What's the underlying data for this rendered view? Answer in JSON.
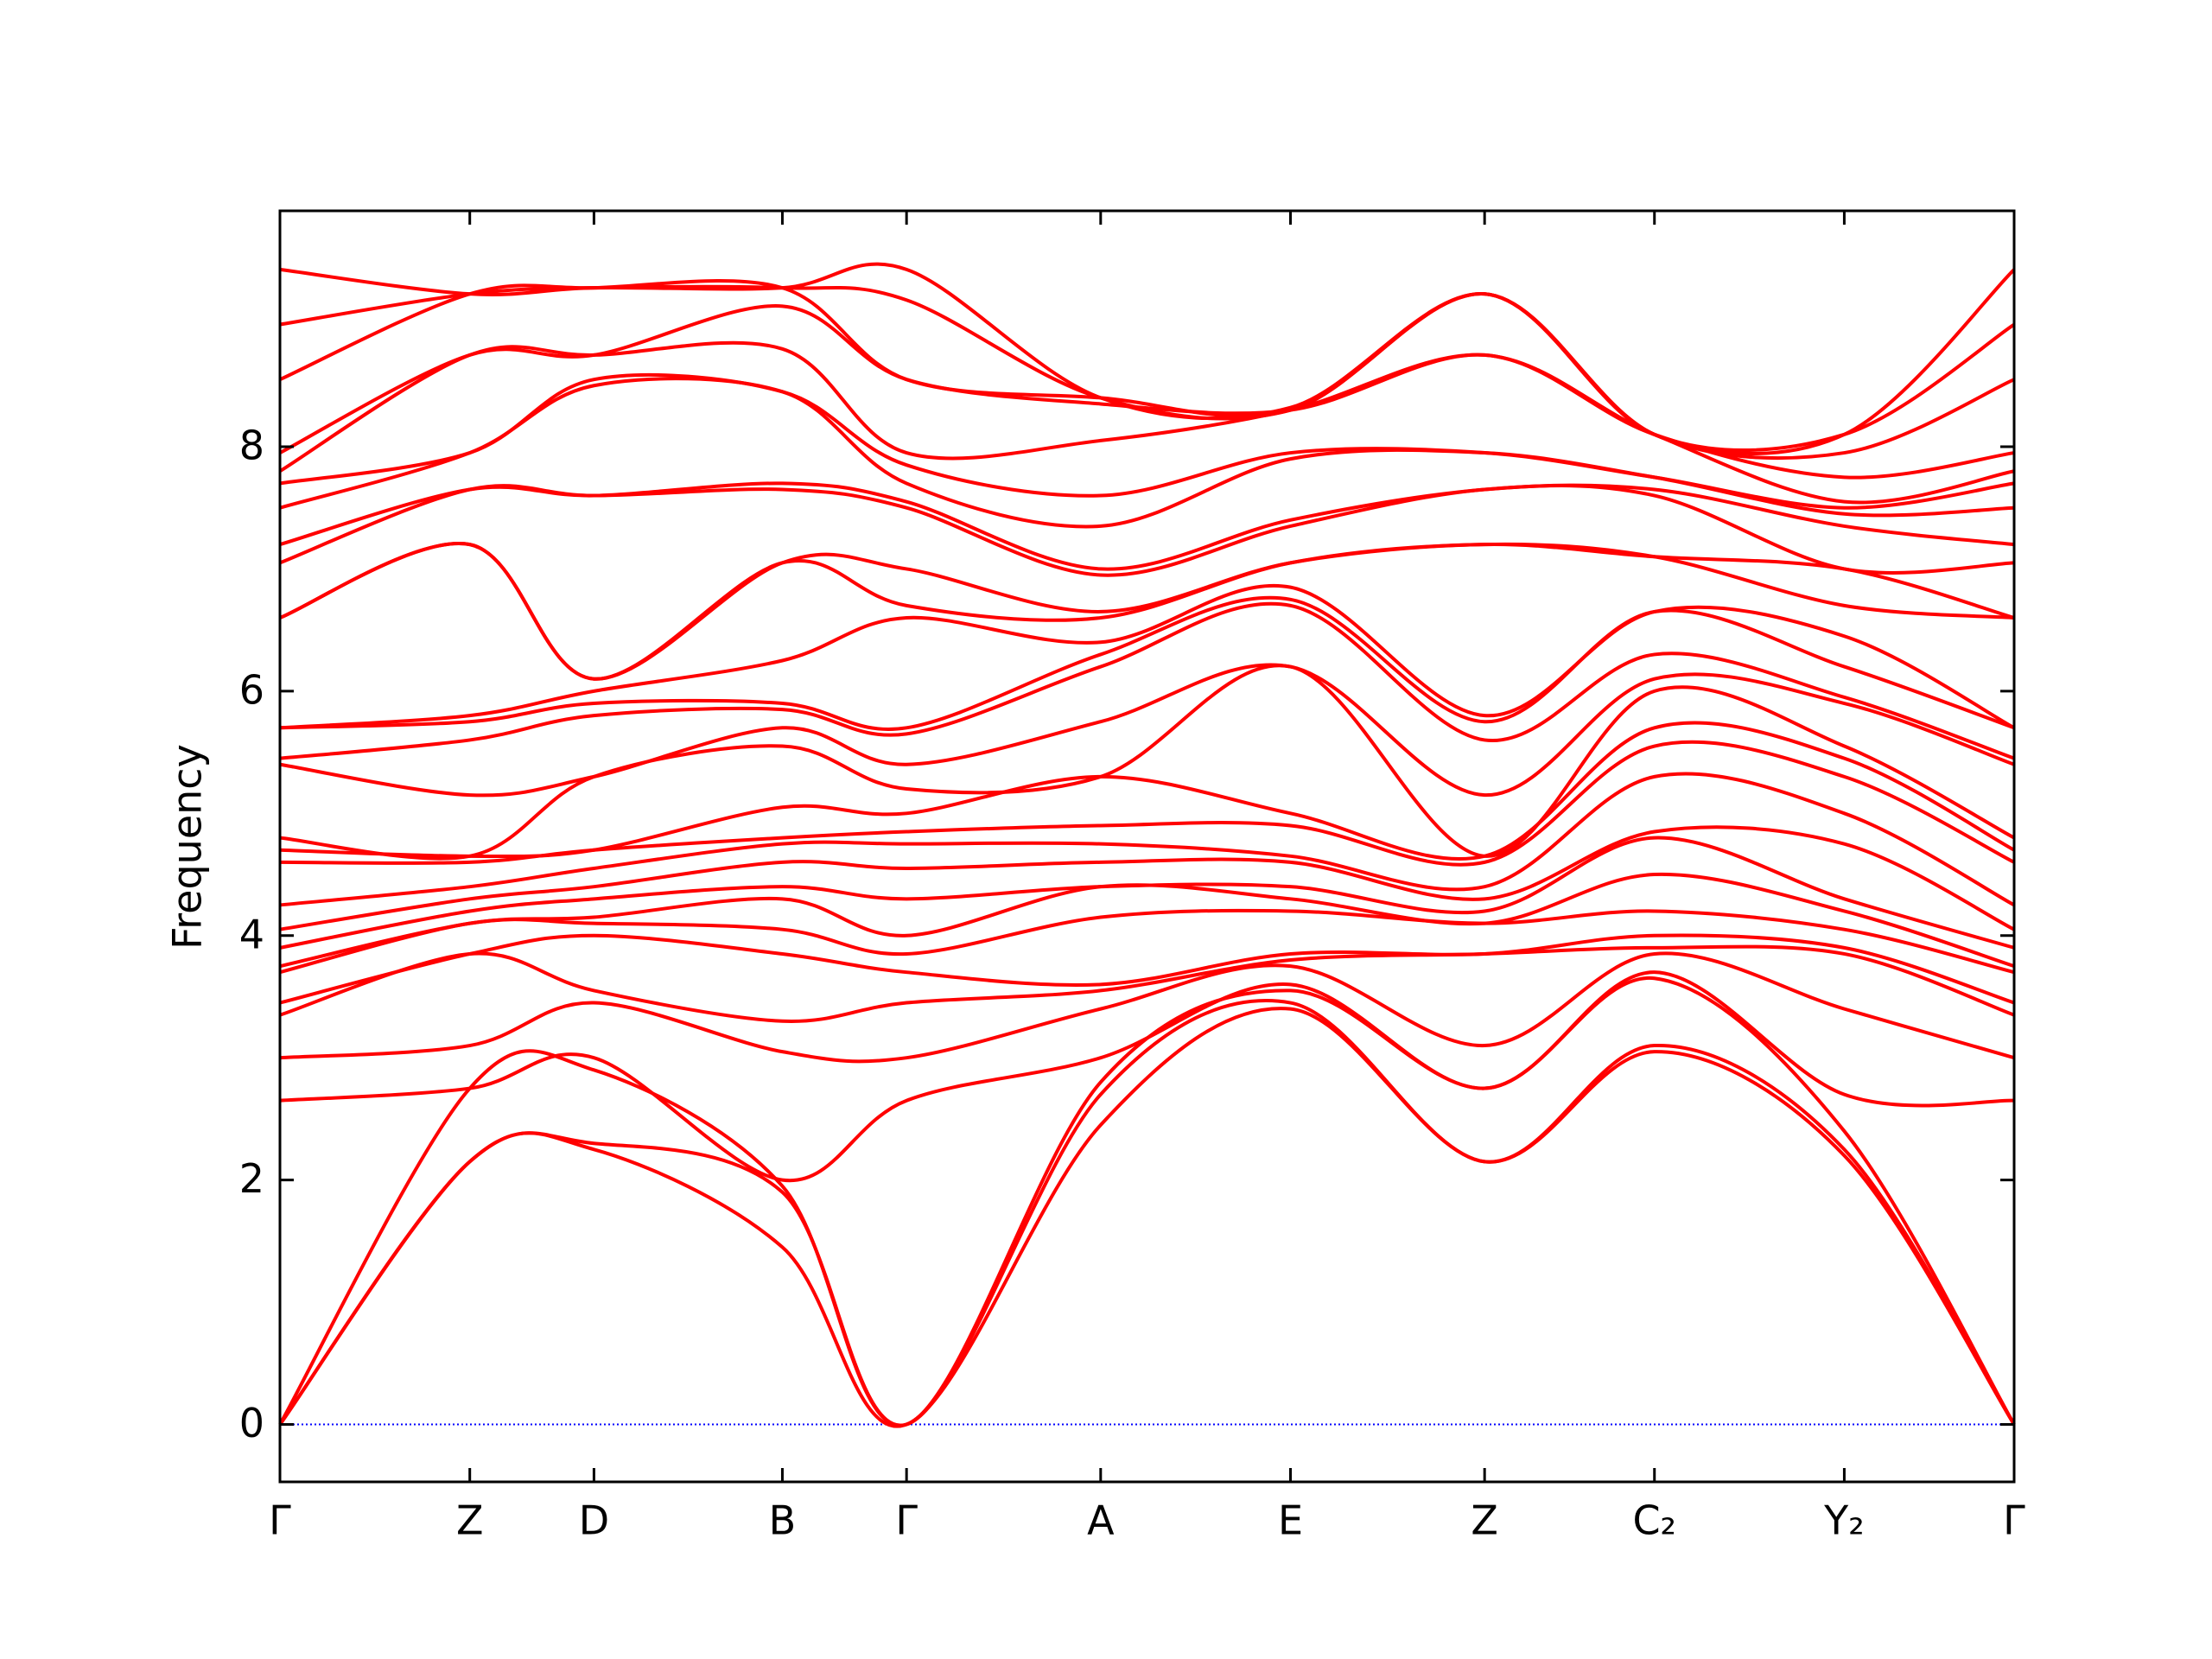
{
  "chart_data": {
    "type": "line",
    "ylabel": "Frequency",
    "color": "#ff0000",
    "reference_line": {
      "value": 0,
      "color": "#0000ff"
    },
    "x": [
      0,
      133,
      220,
      352,
      439,
      575,
      708,
      844,
      963,
      1096,
      1215
    ],
    "xlim": [
      0,
      1215
    ],
    "xticks": [
      {
        "value": 0,
        "label": "Γ"
      },
      {
        "value": 133,
        "label": "Z"
      },
      {
        "value": 220,
        "label": "D"
      },
      {
        "value": 352,
        "label": "B"
      },
      {
        "value": 439,
        "label": "Γ"
      },
      {
        "value": 575,
        "label": "A"
      },
      {
        "value": 708,
        "label": "E"
      },
      {
        "value": 844,
        "label": "Z"
      },
      {
        "value": 963,
        "label": "C₂"
      },
      {
        "value": 1096,
        "label": "Y₂"
      },
      {
        "value": 1215,
        "label": "Γ"
      }
    ],
    "ylim": [
      -0.47,
      9.93
    ],
    "yticks": [
      0,
      2,
      4,
      6,
      8
    ],
    "series": [
      {
        "values": [
          0,
          2.15,
          2.25,
          1.45,
          0,
          2.45,
          3.4,
          2.15,
          3.05,
          2.2,
          0
        ]
      },
      {
        "values": [
          0,
          2.15,
          2.3,
          1.9,
          0,
          2.7,
          3.45,
          2.15,
          3.1,
          2.25,
          0
        ]
      },
      {
        "values": [
          0,
          2.75,
          2.9,
          1.95,
          0,
          2.8,
          3.55,
          2.75,
          3.65,
          2.4,
          0
        ]
      },
      {
        "values": [
          2.65,
          2.75,
          3.0,
          2.0,
          2.65,
          3.0,
          3.6,
          2.75,
          3.7,
          2.7,
          2.65
        ]
      },
      {
        "values": [
          3.0,
          3.1,
          3.45,
          3.05,
          3.0,
          3.4,
          3.75,
          3.1,
          3.85,
          3.4,
          3.0
        ]
      },
      {
        "values": [
          3.35,
          3.85,
          3.55,
          3.3,
          3.45,
          3.55,
          3.8,
          3.85,
          3.9,
          3.85,
          3.35
        ]
      },
      {
        "values": [
          3.45,
          3.85,
          4.0,
          3.85,
          3.7,
          3.6,
          3.85,
          3.85,
          4.0,
          3.9,
          3.45
        ]
      },
      {
        "values": [
          3.7,
          4.1,
          4.1,
          4.05,
          3.85,
          4.15,
          4.2,
          4.1,
          4.2,
          4.05,
          3.7
        ]
      },
      {
        "values": [
          3.75,
          4.1,
          4.15,
          4.3,
          4.0,
          4.4,
          4.3,
          4.1,
          4.5,
          4.2,
          3.75
        ]
      },
      {
        "values": [
          3.9,
          4.2,
          4.3,
          4.4,
          4.3,
          4.4,
          4.4,
          4.2,
          4.8,
          4.3,
          3.9
        ]
      },
      {
        "values": [
          4.05,
          4.3,
          4.4,
          4.6,
          4.55,
          4.6,
          4.6,
          4.3,
          4.85,
          4.75,
          4.05
        ]
      },
      {
        "values": [
          4.25,
          4.4,
          4.55,
          4.75,
          4.75,
          4.75,
          4.65,
          4.4,
          5.3,
          5.0,
          4.25
        ]
      },
      {
        "values": [
          4.6,
          4.6,
          4.7,
          4.8,
          4.85,
          4.9,
          4.9,
          4.6,
          5.55,
          5.3,
          4.6
        ]
      },
      {
        "values": [
          4.7,
          4.65,
          4.7,
          5.05,
          5.0,
          5.3,
          5.0,
          4.65,
          5.7,
          5.45,
          4.7
        ]
      },
      {
        "values": [
          4.8,
          4.65,
          5.3,
          5.55,
          5.2,
          5.3,
          6.2,
          4.65,
          6.0,
          5.55,
          4.8
        ]
      },
      {
        "values": [
          5.4,
          5.15,
          5.3,
          5.7,
          5.4,
          5.75,
          6.2,
          5.15,
          6.1,
          5.9,
          5.4
        ]
      },
      {
        "values": [
          5.45,
          5.6,
          5.8,
          5.85,
          5.65,
          6.2,
          6.7,
          5.6,
          6.3,
          5.95,
          5.45
        ]
      },
      {
        "values": [
          5.7,
          5.75,
          5.9,
          5.9,
          5.7,
          6.3,
          6.75,
          5.75,
          6.65,
          6.2,
          5.7
        ]
      },
      {
        "values": [
          5.7,
          5.8,
          6.0,
          6.25,
          6.6,
          6.4,
          6.85,
          5.8,
          6.65,
          6.45,
          5.7
        ]
      },
      {
        "values": [
          6.6,
          7.2,
          6.1,
          7.05,
          6.7,
          6.6,
          7.05,
          7.2,
          7.1,
          6.7,
          6.6
        ]
      },
      {
        "values": [
          6.6,
          7.2,
          6.1,
          7.05,
          7.0,
          6.65,
          7.05,
          7.2,
          7.1,
          7.0,
          6.6
        ]
      },
      {
        "values": [
          7.05,
          7.65,
          7.6,
          7.65,
          7.5,
          6.95,
          7.35,
          7.65,
          7.6,
          7.0,
          7.05
        ]
      },
      {
        "values": [
          7.2,
          7.65,
          7.6,
          7.7,
          7.55,
          7.0,
          7.4,
          7.65,
          7.65,
          7.35,
          7.2
        ]
      },
      {
        "values": [
          7.5,
          7.95,
          8.5,
          8.45,
          7.7,
          7.35,
          7.9,
          7.95,
          7.75,
          7.45,
          7.5
        ]
      },
      {
        "values": [
          7.7,
          7.95,
          8.55,
          8.45,
          7.85,
          7.6,
          7.95,
          7.95,
          7.75,
          7.5,
          7.7
        ]
      },
      {
        "values": [
          7.8,
          8.75,
          8.75,
          8.8,
          7.95,
          8.05,
          8.3,
          8.75,
          8.1,
          7.55,
          7.8
        ]
      },
      {
        "values": [
          7.95,
          8.75,
          8.75,
          9.15,
          8.55,
          8.35,
          8.3,
          8.75,
          8.1,
          7.75,
          7.95
        ]
      },
      {
        "values": [
          8.55,
          9.25,
          9.3,
          9.3,
          8.55,
          8.4,
          8.3,
          9.25,
          8.1,
          7.95,
          8.55
        ]
      },
      {
        "values": [
          9.0,
          9.25,
          9.3,
          9.3,
          9.2,
          8.4,
          8.3,
          9.25,
          8.1,
          8.1,
          9.0
        ]
      },
      {
        "values": [
          9.45,
          9.25,
          9.3,
          9.3,
          9.45,
          8.4,
          8.32,
          9.25,
          8.1,
          8.1,
          9.45
        ]
      }
    ]
  }
}
